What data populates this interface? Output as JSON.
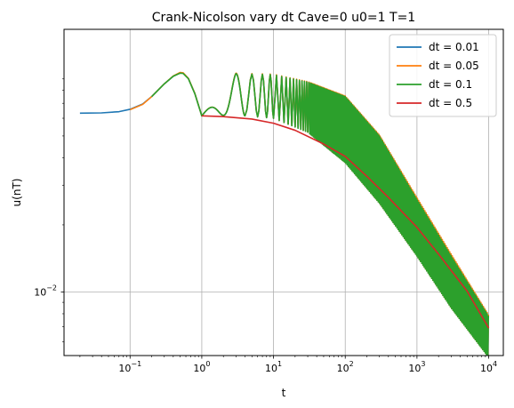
{
  "chart_data": {
    "type": "line",
    "title": "Crank-Nicolson vary dt Cave=0 u0=1 T=1",
    "xlabel": "t",
    "ylabel": "u(nT)",
    "xscale": "log",
    "yscale": "log",
    "xlim": [
      0.012,
      16000
    ],
    "ylim": [
      0.0052,
      0.15
    ],
    "grid": true,
    "legend_position": "top-right",
    "x_ticks": [
      {
        "value": 0.1,
        "base": "10",
        "exp": "−1"
      },
      {
        "value": 1,
        "base": "10",
        "exp": "0"
      },
      {
        "value": 10,
        "base": "10",
        "exp": "1"
      },
      {
        "value": 100,
        "base": "10",
        "exp": "2"
      },
      {
        "value": 1000,
        "base": "10",
        "exp": "3"
      },
      {
        "value": 10000,
        "base": "10",
        "exp": "4"
      }
    ],
    "y_ticks": [
      {
        "value": 0.01,
        "base": "10",
        "exp": "−2"
      }
    ],
    "series": [
      {
        "name": "dt = 0.01",
        "color": "#1f77b4",
        "dt": 0.01,
        "points": [
          [
            0.02,
            0.0632
          ],
          [
            0.04,
            0.0634
          ],
          [
            0.07,
            0.0642
          ],
          [
            0.1,
            0.0658
          ],
          [
            0.15,
            0.0695
          ],
          [
            0.2,
            0.075
          ],
          [
            0.3,
            0.0855
          ],
          [
            0.4,
            0.0925
          ],
          [
            0.5,
            0.0958
          ],
          [
            0.55,
            0.0955
          ],
          [
            0.65,
            0.0905
          ],
          [
            0.8,
            0.0775
          ],
          [
            1.0,
            0.0615
          ]
        ],
        "envelope_top": [
          [
            1,
            0.0615
          ],
          [
            3,
            0.095
          ],
          [
            10,
            0.094
          ],
          [
            30,
            0.087
          ],
          [
            100,
            0.075
          ],
          [
            300,
            0.05
          ],
          [
            1000,
            0.026
          ],
          [
            3000,
            0.0145
          ],
          [
            10000,
            0.0078
          ]
        ],
        "envelope_bottom": [
          [
            1,
            0.0615
          ],
          [
            3,
            0.062
          ],
          [
            10,
            0.06
          ],
          [
            30,
            0.052
          ],
          [
            100,
            0.038
          ],
          [
            300,
            0.025
          ],
          [
            1000,
            0.0145
          ],
          [
            3000,
            0.0085
          ],
          [
            10000,
            0.0051
          ]
        ]
      },
      {
        "name": "dt = 0.05",
        "color": "#ff7f0e",
        "dt": 0.05,
        "points": [
          [
            0.1,
            0.0655
          ],
          [
            0.15,
            0.0692
          ],
          [
            0.2,
            0.075
          ],
          [
            0.3,
            0.0855
          ],
          [
            0.4,
            0.0928
          ],
          [
            0.5,
            0.0962
          ],
          [
            0.55,
            0.0958
          ],
          [
            0.65,
            0.0905
          ],
          [
            0.8,
            0.0775
          ],
          [
            1.0,
            0.0615
          ]
        ],
        "envelope_top": [
          [
            1,
            0.0615
          ],
          [
            3,
            0.0955
          ],
          [
            10,
            0.0945
          ],
          [
            30,
            0.0875
          ],
          [
            100,
            0.0755
          ],
          [
            300,
            0.0505
          ],
          [
            1000,
            0.0265
          ],
          [
            3000,
            0.0148
          ],
          [
            10000,
            0.0079
          ]
        ],
        "envelope_bottom": [
          [
            1,
            0.0615
          ],
          [
            3,
            0.062
          ],
          [
            10,
            0.06
          ],
          [
            30,
            0.052
          ],
          [
            100,
            0.038
          ],
          [
            300,
            0.025
          ],
          [
            1000,
            0.0145
          ],
          [
            3000,
            0.0085
          ],
          [
            10000,
            0.0051
          ]
        ]
      },
      {
        "name": "dt = 0.1",
        "color": "#2ca02c",
        "dt": 0.1,
        "points": [
          [
            0.2,
            0.075
          ],
          [
            0.3,
            0.0855
          ],
          [
            0.4,
            0.0925
          ],
          [
            0.5,
            0.0955
          ],
          [
            0.55,
            0.0952
          ],
          [
            0.65,
            0.0902
          ],
          [
            0.8,
            0.0772
          ],
          [
            1.0,
            0.0615
          ]
        ],
        "envelope_top": [
          [
            1,
            0.0615
          ],
          [
            3,
            0.095
          ],
          [
            10,
            0.094
          ],
          [
            30,
            0.087
          ],
          [
            100,
            0.075
          ],
          [
            300,
            0.05
          ],
          [
            1000,
            0.026
          ],
          [
            3000,
            0.0145
          ],
          [
            10000,
            0.0078
          ]
        ],
        "envelope_bottom": [
          [
            1,
            0.0615
          ],
          [
            3,
            0.062
          ],
          [
            10,
            0.06
          ],
          [
            30,
            0.052
          ],
          [
            100,
            0.038
          ],
          [
            300,
            0.025
          ],
          [
            1000,
            0.0145
          ],
          [
            3000,
            0.0085
          ],
          [
            10000,
            0.0051
          ]
        ]
      },
      {
        "name": "dt = 0.5",
        "color": "#d62728",
        "dt": 0.5,
        "points": [
          [
            1.0,
            0.0615
          ],
          [
            2,
            0.061
          ],
          [
            5,
            0.0595
          ],
          [
            10,
            0.057
          ],
          [
            20,
            0.053
          ],
          [
            50,
            0.046
          ],
          [
            100,
            0.0405
          ],
          [
            200,
            0.033
          ],
          [
            400,
            0.0265
          ],
          [
            1000,
            0.0195
          ],
          [
            2000,
            0.0148
          ],
          [
            5000,
            0.0101
          ],
          [
            10000,
            0.0069
          ]
        ]
      }
    ]
  }
}
